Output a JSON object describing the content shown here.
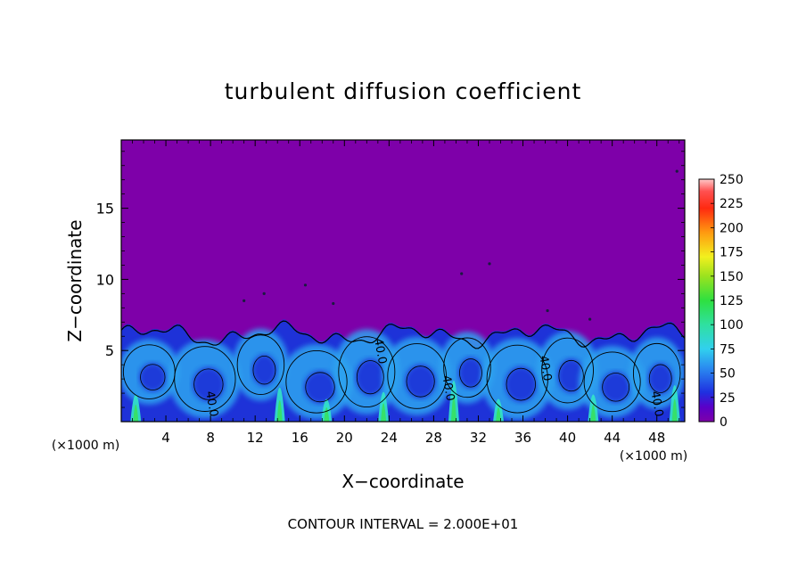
{
  "chart_data": {
    "type": "heatmap",
    "title": "turbulent diffusion coefficient",
    "xlabel": "X−coordinate",
    "ylabel": "Z−coordinate",
    "x_unit_left": "(×1000 m)",
    "x_unit_right": "(×1000 m)",
    "footer": "CONTOUR INTERVAL = 2.000E+01",
    "xlim": [
      0,
      50.5
    ],
    "ylim": [
      0,
      19.8
    ],
    "x_ticks": [
      "4",
      "8",
      "12",
      "16",
      "20",
      "24",
      "28",
      "32",
      "36",
      "40",
      "44",
      "48"
    ],
    "y_ticks": [
      "5",
      "10",
      "15"
    ],
    "colorbar": {
      "range": [
        0,
        250
      ],
      "ticks": [
        "0",
        "25",
        "50",
        "75",
        "100",
        "125",
        "150",
        "175",
        "200",
        "225",
        "250"
      ]
    },
    "contour_labels": [
      {
        "text": "40.0",
        "x": 7.6,
        "y": 2.1
      },
      {
        "text": "40.0",
        "x": 22.7,
        "y": 5.8
      },
      {
        "text": "40.0",
        "x": 28.8,
        "y": 3.2
      },
      {
        "text": "40.0",
        "x": 37.5,
        "y": 4.6
      },
      {
        "text": "40.0",
        "x": 47.5,
        "y": 2.1
      }
    ],
    "background_value": 0,
    "boundary_layer_top": 6.2,
    "boundary_layer_value_range": [
      20,
      70
    ],
    "colors": {
      "background": "#7e00a9",
      "low": "#1e32d8",
      "mid": "#2ea4f0",
      "high": "#33e6c8",
      "peak": "#36e06a"
    }
  }
}
